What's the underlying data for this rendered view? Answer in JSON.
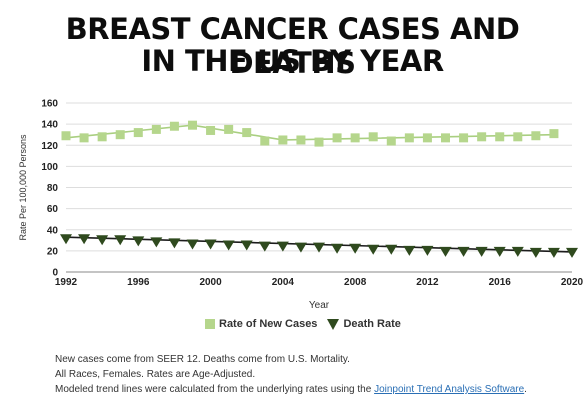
{
  "header": {
    "title_line1": "BREAST CANCER CASES AND DEATHS",
    "title_line2": "IN THE US BY YEAR"
  },
  "legend": {
    "new_cases": "Rate of New Cases",
    "death_rate": "Death Rate"
  },
  "notes": {
    "line1": "New cases come from SEER 12. Deaths come from U.S. Mortality.",
    "line2": "All Races, Females. Rates are Age-Adjusted.",
    "line3_prefix": "Modeled trend lines were calculated from the underlying rates using the ",
    "line3_link": "Joinpoint Trend Analysis Software",
    "line3_suffix": "."
  },
  "colors": {
    "new_cases_marker": "#b5d68c",
    "new_cases_line": "#a9cf80",
    "death_marker": "#2f4a1e",
    "death_line": "#1c1c1c",
    "grid": "#dddddd"
  },
  "chart_data": {
    "type": "line",
    "xlabel": "Year",
    "ylabel": "Rate Per 100,000 Persons",
    "xlim": [
      1992,
      2020
    ],
    "ylim": [
      0,
      160
    ],
    "x_ticks": [
      1992,
      1996,
      2000,
      2004,
      2008,
      2012,
      2016,
      2020
    ],
    "y_ticks": [
      0,
      20,
      40,
      60,
      80,
      100,
      120,
      140,
      160
    ],
    "grid": true,
    "legend_position": "bottom",
    "series": [
      {
        "name": "Rate of New Cases",
        "marker": "square",
        "x": [
          1992,
          1993,
          1994,
          1995,
          1996,
          1997,
          1998,
          1999,
          2000,
          2001,
          2002,
          2003,
          2004,
          2005,
          2006,
          2007,
          2008,
          2009,
          2010,
          2011,
          2012,
          2013,
          2014,
          2015,
          2016,
          2017,
          2018,
          2019
        ],
        "values": [
          129,
          127,
          128,
          130,
          132,
          135,
          138,
          139,
          134,
          135,
          132,
          124,
          125,
          125,
          123,
          127,
          127,
          128,
          124,
          127,
          127,
          127,
          127,
          128,
          128,
          128,
          129,
          131
        ],
        "trend": {
          "x": [
            1992,
            1999,
            2004,
            2019
          ],
          "values": [
            127,
            139,
            125,
            130
          ]
        }
      },
      {
        "name": "Death Rate",
        "marker": "triangle-down",
        "x": [
          1992,
          1993,
          1994,
          1995,
          1996,
          1997,
          1998,
          1999,
          2000,
          2001,
          2002,
          2003,
          2004,
          2005,
          2006,
          2007,
          2008,
          2009,
          2010,
          2011,
          2012,
          2013,
          2014,
          2015,
          2016,
          2017,
          2018,
          2019,
          2020
        ],
        "values": [
          32,
          32,
          31,
          31,
          30,
          29,
          28,
          27,
          27,
          26,
          26,
          25,
          25,
          24,
          24,
          23,
          23,
          22,
          22,
          21,
          21,
          20,
          20,
          20,
          20,
          20,
          19,
          19,
          19
        ],
        "trend": {
          "x": [
            1992,
            2020
          ],
          "values": [
            33,
            19
          ]
        }
      }
    ]
  }
}
